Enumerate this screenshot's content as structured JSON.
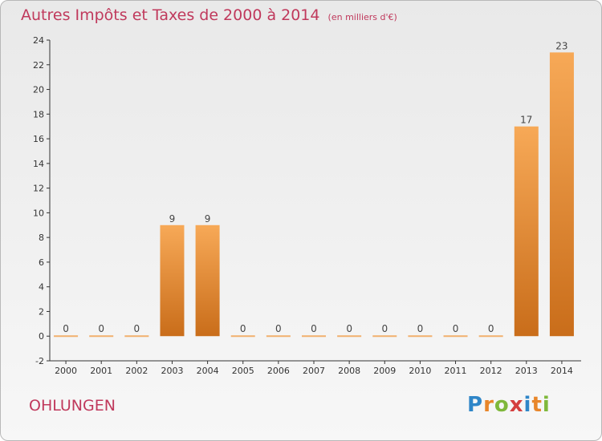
{
  "title": "Autres Impôts et Taxes de 2000 à 2014",
  "title_unit": "(en milliers d'€)",
  "commune": "OHLUNGEN",
  "logo": {
    "p": "P",
    "r": "r",
    "o": "o",
    "x": "x",
    "i": "i",
    "t": "t",
    "i2": "i"
  },
  "colors": {
    "bar_light": "#f7a957",
    "bar_dark": "#c96d1a",
    "zero_bar": "#f2b06e",
    "title": "#c0395c"
  },
  "chart_data": {
    "type": "bar",
    "title": "Autres Impôts et Taxes de 2000 à 2014",
    "categories": [
      "2000",
      "2001",
      "2002",
      "2003",
      "2004",
      "2005",
      "2006",
      "2007",
      "2008",
      "2009",
      "2010",
      "2011",
      "2012",
      "2013",
      "2014"
    ],
    "values": [
      0,
      0,
      0,
      9,
      9,
      0,
      0,
      0,
      0,
      0,
      0,
      0,
      0,
      17,
      23
    ],
    "data_labels": [
      "0",
      "0",
      "0",
      "9",
      "9",
      "0",
      "0",
      "0",
      "0",
      "0",
      "0",
      "0",
      "0",
      "17",
      "23"
    ],
    "yticks": [
      -2,
      0,
      2,
      4,
      6,
      8,
      10,
      12,
      14,
      16,
      18,
      20,
      22,
      24
    ],
    "ylim": [
      -2,
      24
    ],
    "grid": false,
    "xlabel": "",
    "ylabel": ""
  }
}
